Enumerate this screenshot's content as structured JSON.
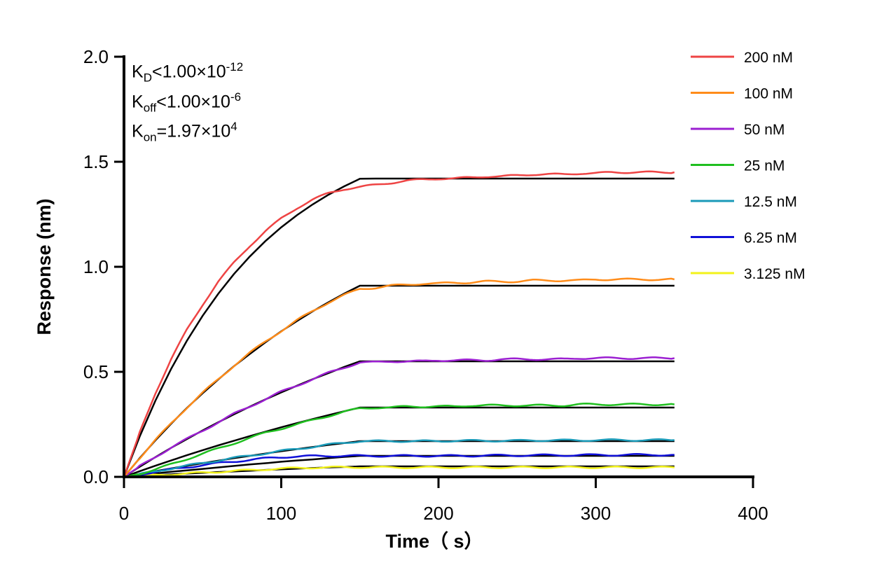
{
  "chart_data": {
    "type": "line",
    "xlabel": "Time（ s）",
    "ylabel": "Response (nm)",
    "xlim": [
      0,
      400
    ],
    "ylim": [
      0,
      2.0
    ],
    "xticks": [
      "0",
      "100",
      "200",
      "300",
      "400"
    ],
    "yticks": [
      "0.0",
      "0.5",
      "1.0",
      "1.5",
      "2.0"
    ],
    "grid": false,
    "legend_position": "top-right",
    "annotations": {
      "kd": {
        "label": "K",
        "sub": "D",
        "rel": "<1.00×10",
        "exp": "-12"
      },
      "koff": {
        "label": "K",
        "sub": "off",
        "rel": "<1.00×10",
        "exp": "-6"
      },
      "kon": {
        "label": "K",
        "sub": "on",
        "rel": "=1.97×10",
        "exp": "4"
      }
    },
    "fit_color": "#000000",
    "x": [
      0,
      10,
      20,
      30,
      40,
      50,
      60,
      70,
      80,
      90,
      100,
      110,
      120,
      130,
      140,
      150,
      160,
      170,
      180,
      190,
      200,
      210,
      220,
      230,
      240,
      250,
      260,
      270,
      280,
      290,
      300,
      310,
      320,
      330,
      340,
      350
    ],
    "series": [
      {
        "name": "200 nM",
        "color": "#ee4444",
        "measured": [
          0,
          0.21,
          0.4,
          0.56,
          0.7,
          0.82,
          0.93,
          1.02,
          1.1,
          1.17,
          1.23,
          1.28,
          1.32,
          1.35,
          1.37,
          1.38,
          1.39,
          1.4,
          1.41,
          1.415,
          1.42,
          1.42,
          1.425,
          1.43,
          1.43,
          1.435,
          1.44,
          1.44,
          1.44,
          1.445,
          1.445,
          1.45,
          1.45,
          1.45,
          1.45,
          1.45
        ],
        "fit": [
          0,
          0.192,
          0.363,
          0.514,
          0.648,
          0.767,
          0.872,
          0.966,
          1.049,
          1.123,
          1.188,
          1.246,
          1.297,
          1.343,
          1.383,
          1.419,
          1.42,
          1.42,
          1.42,
          1.42,
          1.42,
          1.42,
          1.42,
          1.42,
          1.42,
          1.42,
          1.42,
          1.42,
          1.42,
          1.42,
          1.42,
          1.42,
          1.42,
          1.42,
          1.42,
          1.42
        ]
      },
      {
        "name": "100 nM",
        "color": "#ff8c1a",
        "measured": [
          0,
          0.09,
          0.175,
          0.255,
          0.33,
          0.4,
          0.465,
          0.53,
          0.59,
          0.645,
          0.695,
          0.745,
          0.79,
          0.83,
          0.865,
          0.895,
          0.9,
          0.91,
          0.915,
          0.92,
          0.92,
          0.925,
          0.925,
          0.93,
          0.93,
          0.93,
          0.935,
          0.935,
          0.935,
          0.935,
          0.94,
          0.94,
          0.94,
          0.94,
          0.94,
          0.94
        ],
        "fit": [
          0,
          0.089,
          0.174,
          0.253,
          0.328,
          0.398,
          0.464,
          0.527,
          0.585,
          0.641,
          0.693,
          0.742,
          0.788,
          0.831,
          0.872,
          0.91,
          0.91,
          0.91,
          0.91,
          0.91,
          0.91,
          0.91,
          0.91,
          0.91,
          0.91,
          0.91,
          0.91,
          0.91,
          0.91,
          0.91,
          0.91,
          0.91,
          0.91,
          0.91,
          0.91,
          0.91
        ]
      },
      {
        "name": "50 nM",
        "color": "#9b1fd1",
        "measured": [
          0,
          0.05,
          0.095,
          0.14,
          0.18,
          0.22,
          0.26,
          0.3,
          0.335,
          0.37,
          0.405,
          0.435,
          0.465,
          0.495,
          0.52,
          0.545,
          0.545,
          0.55,
          0.55,
          0.55,
          0.555,
          0.555,
          0.555,
          0.555,
          0.56,
          0.56,
          0.56,
          0.56,
          0.56,
          0.565,
          0.565,
          0.565,
          0.565,
          0.565,
          0.565,
          0.565
        ],
        "fit": [
          0,
          0.048,
          0.094,
          0.138,
          0.18,
          0.221,
          0.26,
          0.298,
          0.334,
          0.369,
          0.402,
          0.434,
          0.465,
          0.494,
          0.523,
          0.55,
          0.55,
          0.55,
          0.55,
          0.55,
          0.55,
          0.55,
          0.55,
          0.55,
          0.55,
          0.55,
          0.55,
          0.55,
          0.55,
          0.55,
          0.55,
          0.55,
          0.55,
          0.55,
          0.55,
          0.55
        ]
      },
      {
        "name": "25 nM",
        "color": "#1fbf1f",
        "measured": [
          0,
          0.015,
          0.035,
          0.06,
          0.085,
          0.11,
          0.135,
          0.16,
          0.185,
          0.21,
          0.23,
          0.25,
          0.27,
          0.29,
          0.31,
          0.325,
          0.33,
          0.33,
          0.335,
          0.335,
          0.335,
          0.335,
          0.34,
          0.34,
          0.34,
          0.34,
          0.34,
          0.34,
          0.34,
          0.345,
          0.345,
          0.345,
          0.345,
          0.345,
          0.345,
          0.345
        ],
        "fit": [
          0,
          0.027,
          0.053,
          0.078,
          0.103,
          0.127,
          0.15,
          0.172,
          0.194,
          0.215,
          0.236,
          0.256,
          0.275,
          0.294,
          0.312,
          0.33,
          0.33,
          0.33,
          0.33,
          0.33,
          0.33,
          0.33,
          0.33,
          0.33,
          0.33,
          0.33,
          0.33,
          0.33,
          0.33,
          0.33,
          0.33,
          0.33,
          0.33,
          0.33,
          0.33,
          0.33
        ]
      },
      {
        "name": "12.5 nM",
        "color": "#1a9ab8",
        "measured": [
          0,
          0.012,
          0.026,
          0.04,
          0.053,
          0.066,
          0.078,
          0.09,
          0.101,
          0.112,
          0.123,
          0.133,
          0.143,
          0.153,
          0.162,
          0.17,
          0.17,
          0.17,
          0.17,
          0.17,
          0.17,
          0.172,
          0.172,
          0.172,
          0.172,
          0.172,
          0.174,
          0.174,
          0.174,
          0.174,
          0.175,
          0.175,
          0.175,
          0.175,
          0.175,
          0.175
        ],
        "fit": [
          0,
          0.014,
          0.027,
          0.04,
          0.053,
          0.065,
          0.077,
          0.089,
          0.1,
          0.111,
          0.122,
          0.132,
          0.142,
          0.152,
          0.161,
          0.17,
          0.17,
          0.17,
          0.17,
          0.17,
          0.17,
          0.17,
          0.17,
          0.17,
          0.17,
          0.17,
          0.17,
          0.17,
          0.17,
          0.17,
          0.17,
          0.17,
          0.17,
          0.17,
          0.17,
          0.17
        ]
      },
      {
        "name": "6.25 nM",
        "color": "#1010d8",
        "measured": [
          0,
          0.012,
          0.024,
          0.035,
          0.046,
          0.056,
          0.065,
          0.073,
          0.081,
          0.088,
          0.094,
          0.097,
          0.099,
          0.1,
          0.1,
          0.1,
          0.1,
          0.1,
          0.1,
          0.1,
          0.1,
          0.1,
          0.1,
          0.102,
          0.102,
          0.102,
          0.103,
          0.103,
          0.103,
          0.104,
          0.104,
          0.104,
          0.105,
          0.105,
          0.105,
          0.105
        ],
        "fit": [
          0,
          0.008,
          0.016,
          0.024,
          0.031,
          0.038,
          0.045,
          0.052,
          0.059,
          0.065,
          0.072,
          0.078,
          0.083,
          0.089,
          0.095,
          0.1,
          0.1,
          0.1,
          0.1,
          0.1,
          0.1,
          0.1,
          0.1,
          0.1,
          0.1,
          0.1,
          0.1,
          0.1,
          0.1,
          0.1,
          0.1,
          0.1,
          0.1,
          0.1,
          0.1,
          0.1
        ]
      },
      {
        "name": "3.125 nM",
        "color": "#f2f21a",
        "measured": [
          0,
          0.004,
          0.008,
          0.012,
          0.016,
          0.02,
          0.024,
          0.028,
          0.032,
          0.036,
          0.039,
          0.042,
          0.044,
          0.045,
          0.046,
          0.046,
          0.045,
          0.045,
          0.045,
          0.045,
          0.045,
          0.045,
          0.045,
          0.045,
          0.045,
          0.045,
          0.045,
          0.045,
          0.045,
          0.045,
          0.045,
          0.045,
          0.045,
          0.045,
          0.045,
          0.045
        ],
        "fit": [
          0,
          0.004,
          0.008,
          0.012,
          0.016,
          0.019,
          0.023,
          0.026,
          0.029,
          0.033,
          0.036,
          0.039,
          0.042,
          0.045,
          0.047,
          0.05,
          0.05,
          0.05,
          0.05,
          0.05,
          0.05,
          0.05,
          0.05,
          0.05,
          0.05,
          0.05,
          0.05,
          0.05,
          0.05,
          0.05,
          0.05,
          0.05,
          0.05,
          0.05,
          0.05,
          0.05
        ]
      }
    ]
  }
}
